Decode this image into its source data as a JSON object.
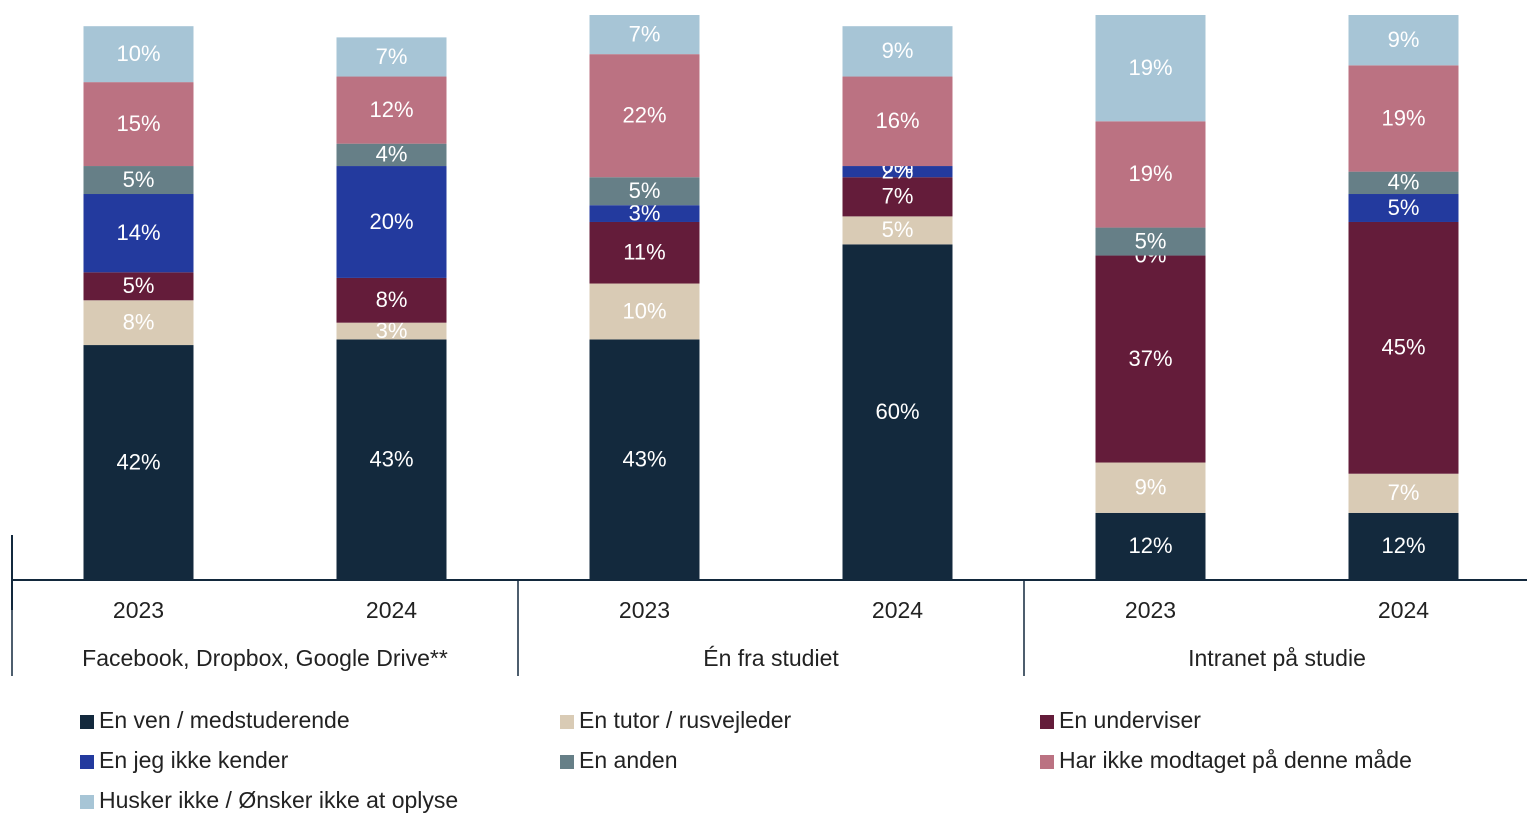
{
  "chart_data": {
    "type": "stacked_bar",
    "categories": [
      "2023",
      "2024",
      "2023",
      "2024",
      "2023",
      "2024"
    ],
    "groups": [
      "Facebook, Dropbox, Google Drive**",
      "Én fra studiet",
      "Intranet på studie"
    ],
    "ylim": [
      0,
      101
    ],
    "series": [
      {
        "name": "En ven / medstuderende",
        "color": "#13293d",
        "values": [
          42,
          43,
          43,
          60,
          12,
          12
        ],
        "value_labels": [
          "42%",
          "43%",
          "43%",
          "60%",
          "12%",
          "12%"
        ]
      },
      {
        "name": "En tutor / rusvejleder",
        "color": "#d9cbb5",
        "values": [
          8,
          3,
          10,
          5,
          9,
          7
        ],
        "value_labels": [
          "8%",
          "3%",
          "10%",
          "5%",
          "9%",
          "7%"
        ]
      },
      {
        "name": "En underviser",
        "color": "#641c3a",
        "values": [
          5,
          8,
          11,
          7,
          37,
          45
        ],
        "value_labels": [
          "5%",
          "8%",
          "11%",
          "7%",
          "37%",
          "45%"
        ]
      },
      {
        "name": "En jeg ikke kender",
        "color": "#233a9e",
        "values": [
          14,
          20,
          3,
          2,
          0,
          5
        ],
        "value_labels": [
          "14%",
          "20%",
          "3%",
          "2%",
          "0%",
          "5%"
        ]
      },
      {
        "name": "En anden",
        "color": "#667f87",
        "values": [
          5,
          4,
          5,
          0,
          5,
          4
        ],
        "value_labels": [
          "5%",
          "4%",
          "5%",
          "0%",
          "5%",
          "4%"
        ]
      },
      {
        "name": "Har ikke modtaget på denne måde",
        "color": "#bb7282",
        "values": [
          15,
          12,
          22,
          16,
          19,
          19
        ],
        "value_labels": [
          "15%",
          "12%",
          "22%",
          "16%",
          "19%",
          "19%"
        ]
      },
      {
        "name": "Husker ikke / Ønsker ikke at oplyse",
        "color": "#a7c5d6",
        "values": [
          10,
          7,
          7,
          9,
          19,
          9
        ],
        "value_labels": [
          "10%",
          "7%",
          "7%",
          "9%",
          "19%",
          "9%"
        ]
      }
    ]
  }
}
